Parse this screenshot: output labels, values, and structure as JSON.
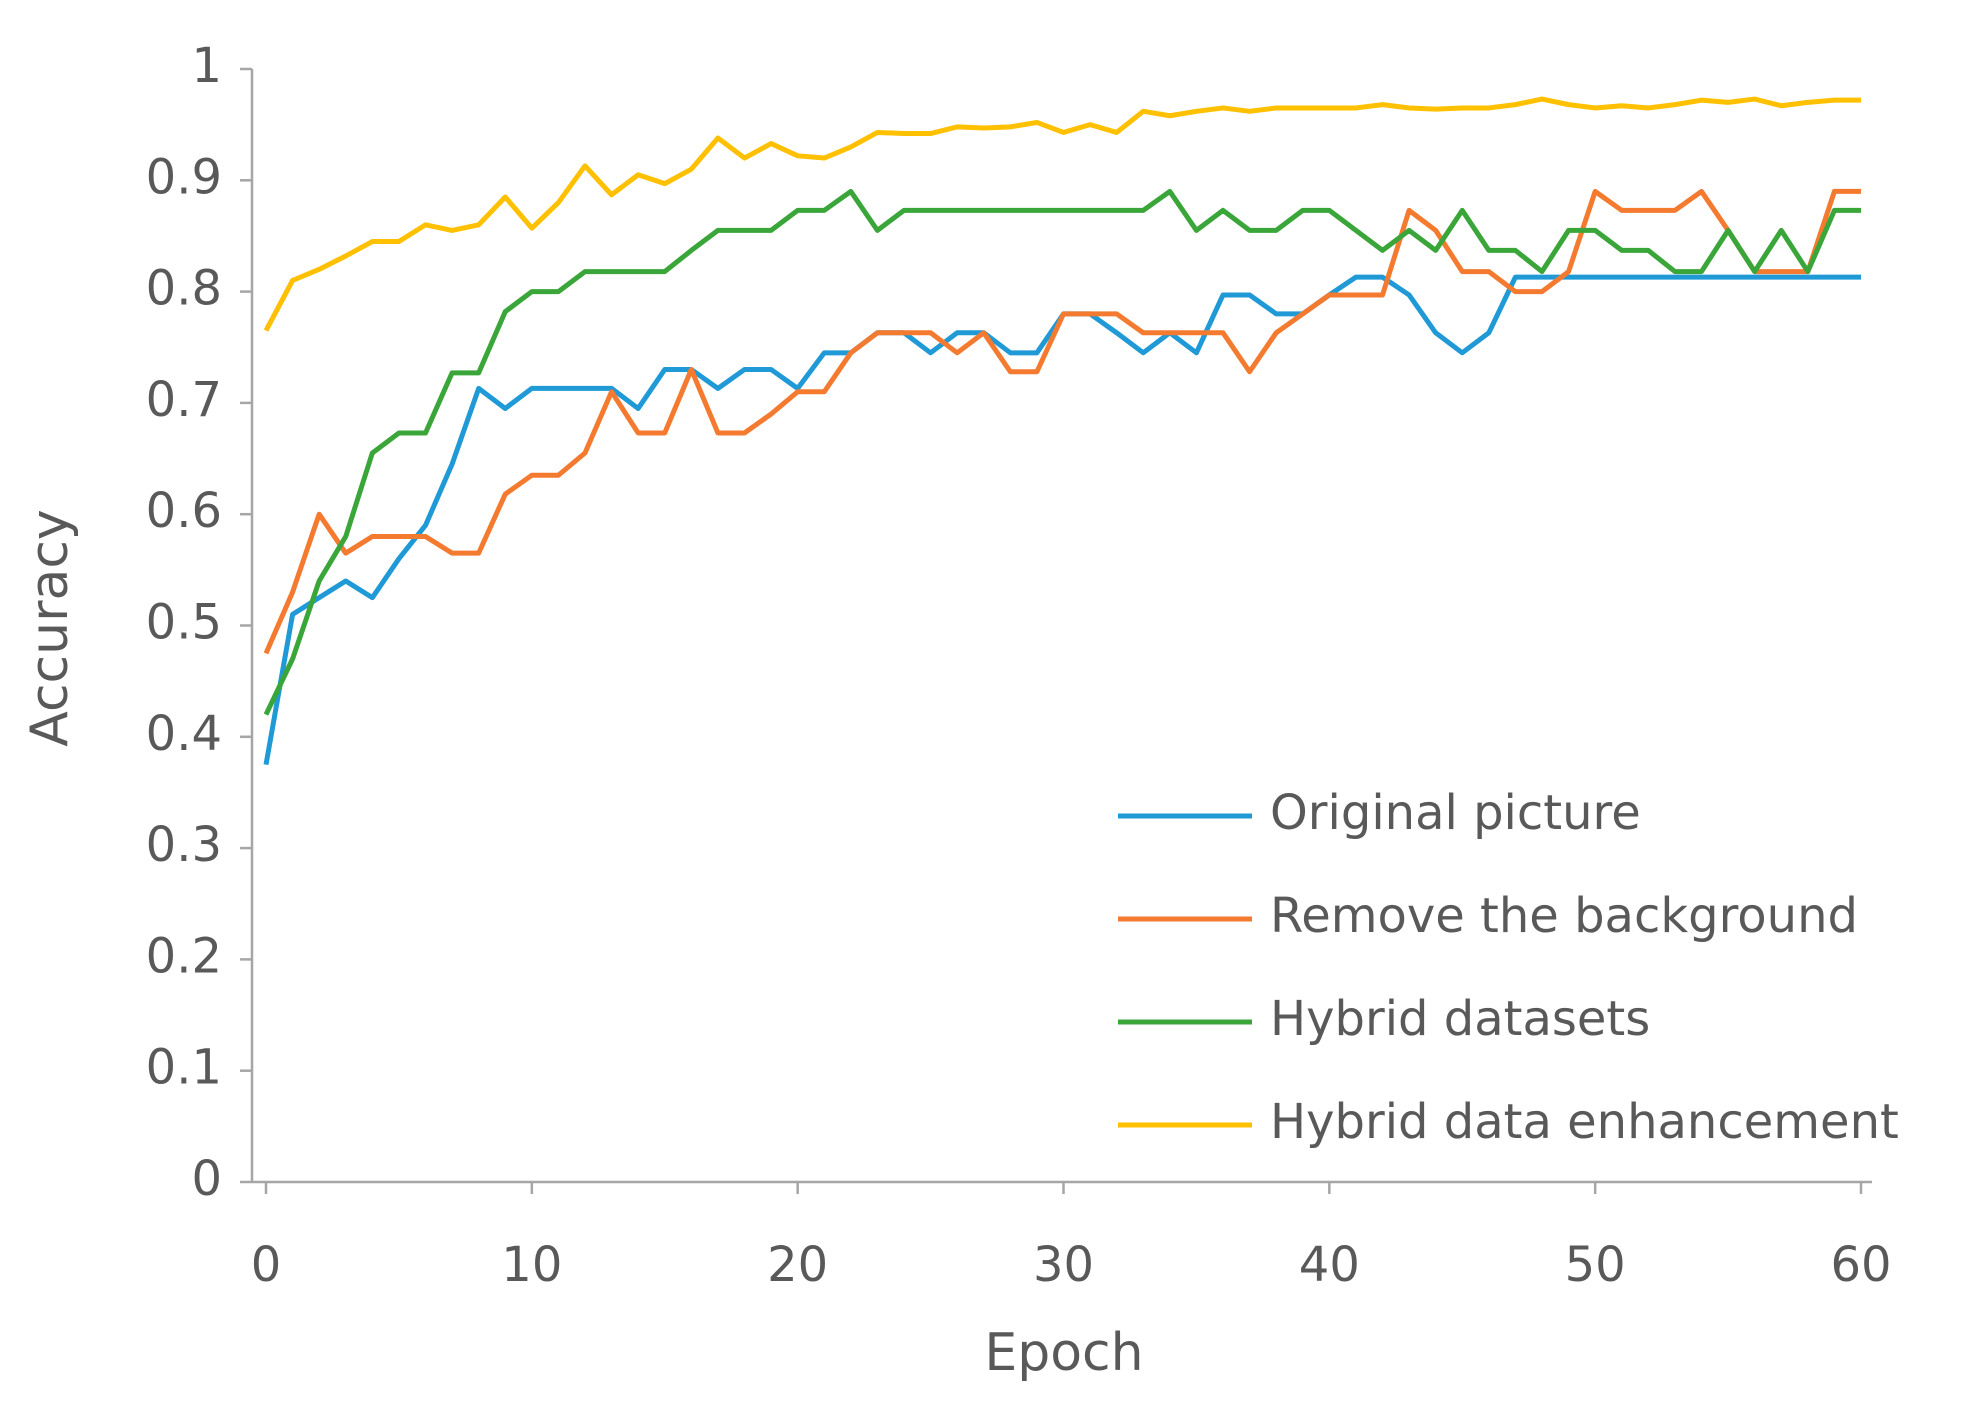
{
  "chart_data": {
    "type": "line",
    "x_label": "Epoch",
    "y_label": "Accuracy",
    "x": [
      0,
      1,
      2,
      3,
      4,
      5,
      6,
      7,
      8,
      9,
      10,
      11,
      12,
      13,
      14,
      15,
      16,
      17,
      18,
      19,
      20,
      21,
      22,
      23,
      24,
      25,
      26,
      27,
      28,
      29,
      30,
      31,
      32,
      33,
      34,
      35,
      36,
      37,
      38,
      39,
      40,
      41,
      42,
      43,
      44,
      45,
      46,
      47,
      48,
      49,
      50,
      51,
      52,
      53,
      54,
      55,
      56,
      57,
      58,
      59,
      60
    ],
    "series": [
      {
        "name": "Original picture",
        "color": "#1f9ad6",
        "values": [
          0.375,
          0.51,
          0.525,
          0.54,
          0.525,
          0.56,
          0.59,
          0.645,
          0.713,
          0.695,
          0.713,
          0.713,
          0.713,
          0.713,
          0.695,
          0.73,
          0.73,
          0.713,
          0.73,
          0.73,
          0.713,
          0.745,
          0.745,
          0.763,
          0.763,
          0.745,
          0.763,
          0.763,
          0.745,
          0.745,
          0.78,
          0.78,
          0.763,
          0.745,
          0.763,
          0.745,
          0.797,
          0.797,
          0.78,
          0.78,
          0.797,
          0.813,
          0.813,
          0.797,
          0.763,
          0.745,
          0.763,
          0.813,
          0.813,
          0.813,
          0.813,
          0.813,
          0.813,
          0.813,
          0.813,
          0.813,
          0.813,
          0.813,
          0.813,
          0.813,
          0.813
        ]
      },
      {
        "name": "Remove the background",
        "color": "#f47a30",
        "values": [
          0.475,
          0.53,
          0.6,
          0.565,
          0.58,
          0.58,
          0.58,
          0.565,
          0.565,
          0.618,
          0.635,
          0.635,
          0.655,
          0.71,
          0.673,
          0.673,
          0.73,
          0.673,
          0.673,
          0.69,
          0.71,
          0.71,
          0.745,
          0.763,
          0.763,
          0.763,
          0.745,
          0.763,
          0.728,
          0.728,
          0.78,
          0.78,
          0.78,
          0.763,
          0.763,
          0.763,
          0.763,
          0.728,
          0.763,
          0.78,
          0.797,
          0.797,
          0.797,
          0.873,
          0.855,
          0.818,
          0.818,
          0.8,
          0.8,
          0.818,
          0.89,
          0.873,
          0.873,
          0.873,
          0.89,
          0.855,
          0.818,
          0.818,
          0.818,
          0.89,
          0.89
        ]
      },
      {
        "name": "Hybrid datasets",
        "color": "#3aa63a",
        "values": [
          0.42,
          0.47,
          0.54,
          0.58,
          0.655,
          0.673,
          0.673,
          0.727,
          0.727,
          0.782,
          0.8,
          0.8,
          0.818,
          0.818,
          0.818,
          0.818,
          0.837,
          0.855,
          0.855,
          0.855,
          0.873,
          0.873,
          0.89,
          0.855,
          0.873,
          0.873,
          0.873,
          0.873,
          0.873,
          0.873,
          0.873,
          0.873,
          0.873,
          0.873,
          0.89,
          0.855,
          0.873,
          0.855,
          0.855,
          0.873,
          0.873,
          0.855,
          0.837,
          0.855,
          0.837,
          0.873,
          0.837,
          0.837,
          0.818,
          0.855,
          0.855,
          0.837,
          0.837,
          0.818,
          0.818,
          0.855,
          0.818,
          0.855,
          0.818,
          0.873,
          0.873
        ]
      },
      {
        "name": "Hybrid data enhancement",
        "color": "#ffc000",
        "values": [
          0.765,
          0.81,
          0.82,
          0.832,
          0.845,
          0.845,
          0.86,
          0.855,
          0.86,
          0.885,
          0.857,
          0.88,
          0.913,
          0.887,
          0.905,
          0.897,
          0.91,
          0.938,
          0.92,
          0.933,
          0.922,
          0.92,
          0.93,
          0.943,
          0.942,
          0.942,
          0.948,
          0.947,
          0.948,
          0.952,
          0.943,
          0.95,
          0.943,
          0.962,
          0.958,
          0.962,
          0.965,
          0.962,
          0.965,
          0.965,
          0.965,
          0.965,
          0.968,
          0.965,
          0.964,
          0.965,
          0.965,
          0.968,
          0.973,
          0.968,
          0.965,
          0.967,
          0.965,
          0.968,
          0.972,
          0.97,
          0.973,
          0.967,
          0.97,
          0.972,
          0.972
        ]
      }
    ],
    "xlim": [
      0,
      60
    ],
    "xticks": [
      0,
      10,
      20,
      30,
      40,
      50,
      60
    ],
    "ylim": [
      0,
      1
    ],
    "yticks": [
      0,
      0.1,
      0.2,
      0.3,
      0.4,
      0.5,
      0.6,
      0.7,
      0.8,
      0.9,
      1
    ],
    "grid": false,
    "legend": "lower right"
  }
}
